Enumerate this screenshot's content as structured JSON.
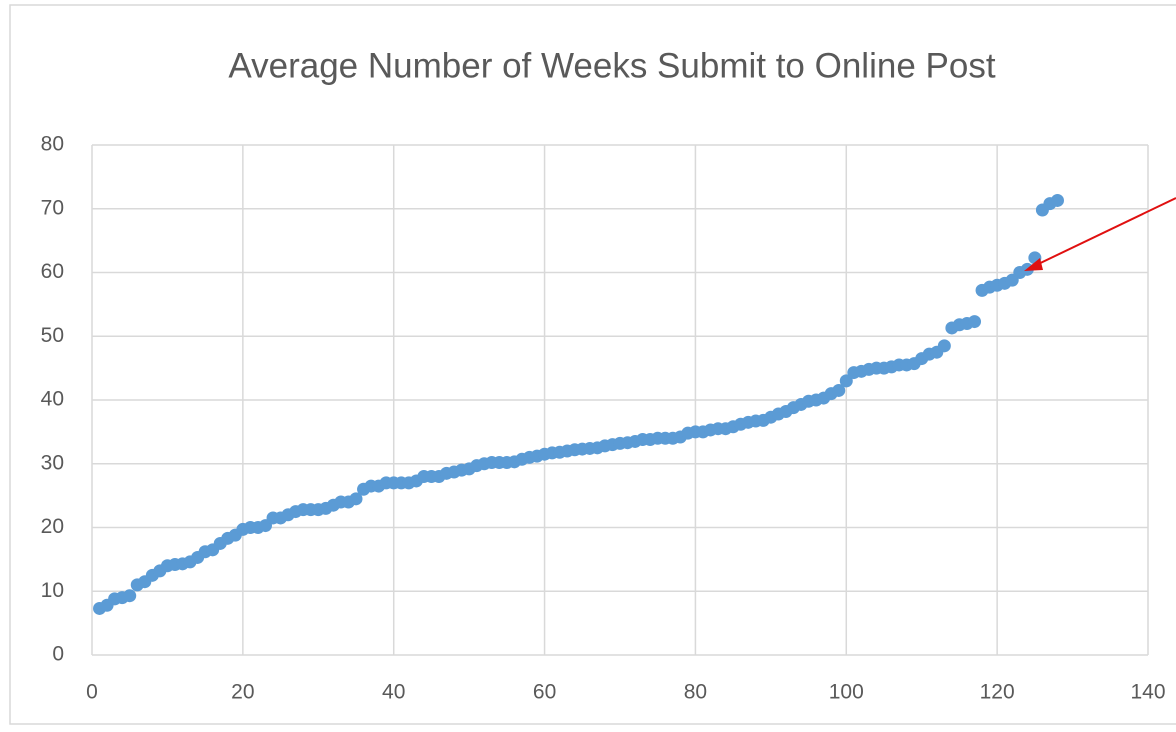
{
  "chart_data": {
    "type": "scatter",
    "title": "Average Number of Weeks Submit to Online Post",
    "x": [
      1,
      2,
      3,
      4,
      5,
      6,
      7,
      8,
      9,
      10,
      11,
      12,
      13,
      14,
      15,
      16,
      17,
      18,
      19,
      20,
      21,
      22,
      23,
      24,
      25,
      26,
      27,
      28,
      29,
      30,
      31,
      32,
      33,
      34,
      35,
      36,
      37,
      38,
      39,
      40,
      41,
      42,
      43,
      44,
      45,
      46,
      47,
      48,
      49,
      50,
      51,
      52,
      53,
      54,
      55,
      56,
      57,
      58,
      59,
      60,
      61,
      62,
      63,
      64,
      65,
      66,
      67,
      68,
      69,
      70,
      71,
      72,
      73,
      74,
      75,
      76,
      77,
      78,
      79,
      80,
      81,
      82,
      83,
      84,
      85,
      86,
      87,
      88,
      89,
      90,
      91,
      92,
      93,
      94,
      95,
      96,
      97,
      98,
      99,
      100,
      101,
      102,
      103,
      104,
      105,
      106,
      107,
      108,
      109,
      110,
      111,
      112,
      113,
      114,
      115,
      116,
      117,
      118,
      119,
      120,
      121,
      122,
      123,
      124,
      125,
      126,
      127,
      128
    ],
    "values": [
      7.3,
      7.8,
      8.8,
      9,
      9.3,
      11,
      11.5,
      12.5,
      13.2,
      14,
      14.2,
      14.3,
      14.6,
      15.3,
      16.2,
      16.5,
      17.5,
      18.3,
      18.8,
      19.7,
      20,
      20,
      20.3,
      21.5,
      21.5,
      22,
      22.5,
      22.8,
      22.8,
      22.8,
      23,
      23.5,
      24,
      24,
      24.5,
      26,
      26.5,
      26.5,
      27,
      27,
      27,
      27,
      27.3,
      28,
      28,
      28,
      28.5,
      28.7,
      29,
      29.2,
      29.7,
      30,
      30.2,
      30.2,
      30.2,
      30.3,
      30.7,
      31,
      31.2,
      31.5,
      31.7,
      31.8,
      32,
      32.2,
      32.3,
      32.4,
      32.5,
      32.8,
      33,
      33.2,
      33.3,
      33.5,
      33.8,
      33.8,
      34,
      34,
      34,
      34.2,
      34.8,
      35,
      35,
      35.3,
      35.5,
      35.5,
      35.8,
      36.2,
      36.5,
      36.7,
      36.8,
      37.3,
      37.8,
      38.2,
      38.8,
      39.3,
      39.8,
      40,
      40.3,
      41,
      41.5,
      43,
      44.3,
      44.5,
      44.8,
      45,
      45,
      45.2,
      45.5,
      45.5,
      45.7,
      46.5,
      47.2,
      47.5,
      48.5,
      51.3,
      51.8,
      52,
      52.3,
      57.2,
      57.7,
      58,
      58.3,
      58.8,
      60,
      60.5,
      62.3,
      69.8,
      70.8,
      71.3
    ],
    "color": "#5b9bd5",
    "xlim": [
      0,
      140
    ],
    "xticks": [
      0,
      20,
      40,
      60,
      80,
      100,
      120,
      140
    ],
    "ylim": [
      0,
      80
    ],
    "yticks": [
      0,
      10,
      20,
      30,
      40,
      50,
      60,
      70,
      80
    ],
    "grid": true
  }
}
